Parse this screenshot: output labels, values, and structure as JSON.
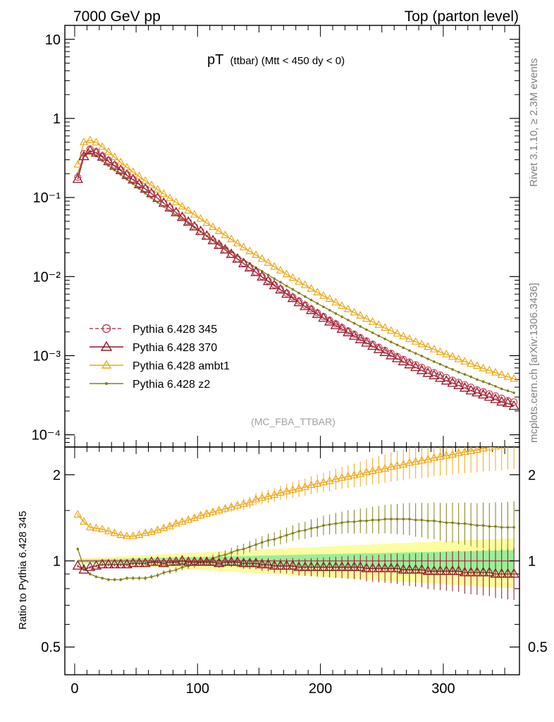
{
  "header": {
    "left": "7000 GeV pp",
    "right": "Top (parton level)"
  },
  "side_labels": {
    "rivet": "Rivet 3.1.10, ≥ 2.3M events",
    "mcplots": "mcplots.cern.ch [arXiv:1306.3436]"
  },
  "title": {
    "main": "pT",
    "sub": "(ttbar) (Mtt < 450 dy < 0)"
  },
  "watermark": "(MC_FBA_TTBAR)",
  "ratio_ylabel": "Ratio to Pythia 6.428 345",
  "colors": {
    "p345": "#c44058",
    "p370": "#8e1828",
    "ambt1": "#f0a818",
    "z2": "#808018",
    "band_inner": "#98f098",
    "band_outer": "#fcfca0"
  },
  "legend": [
    {
      "key": "p345",
      "label": "Pythia 6.428 345"
    },
    {
      "key": "p370",
      "label": "Pythia 6.428 370"
    },
    {
      "key": "ambt1",
      "label": "Pythia 6.428 ambt1"
    },
    {
      "key": "z2",
      "label": "Pythia 6.428 z2"
    }
  ],
  "chart_data": [
    {
      "type": "line",
      "title": "pT (ttbar) (Mtt < 450 dy < 0)",
      "yscale": "log",
      "xlim": [
        -8,
        362
      ],
      "ylim": [
        7e-05,
        15
      ],
      "y_ticks": [
        {
          "label": "10",
          "value": 10
        },
        {
          "label": "1",
          "value": 1
        },
        {
          "label": "10⁻¹",
          "value": 0.1
        },
        {
          "label": "10⁻²",
          "value": 0.01
        },
        {
          "label": "10⁻³",
          "value": 0.001
        },
        {
          "label": "10⁻⁴",
          "value": 0.0001
        }
      ],
      "legend_placement": "lower-left",
      "x": [
        2.5,
        7.5,
        12.5,
        17.5,
        22.5,
        27.5,
        32.5,
        37.5,
        42.5,
        47.5,
        52.5,
        57.5,
        62.5,
        67.5,
        72.5,
        77.5,
        82.5,
        87.5,
        92.5,
        97.5,
        102.5,
        107.5,
        112.5,
        117.5,
        122.5,
        127.5,
        132.5,
        137.5,
        142.5,
        147.5,
        152.5,
        157.5,
        162.5,
        167.5,
        172.5,
        177.5,
        182.5,
        187.5,
        192.5,
        197.5,
        202.5,
        207.5,
        212.5,
        217.5,
        222.5,
        227.5,
        232.5,
        237.5,
        242.5,
        247.5,
        252.5,
        257.5,
        262.5,
        267.5,
        272.5,
        277.5,
        282.5,
        287.5,
        292.5,
        297.5,
        302.5,
        307.5,
        312.5,
        317.5,
        322.5,
        327.5,
        332.5,
        337.5,
        342.5,
        347.5,
        352.5,
        357.5
      ],
      "series": [
        {
          "name": "Pythia 6.428 345",
          "key": "p345",
          "values": [
            0.18,
            0.36,
            0.41,
            0.38,
            0.336,
            0.295,
            0.258,
            0.225,
            0.196,
            0.171,
            0.149,
            0.13,
            0.113,
            0.098,
            0.085,
            0.074,
            0.0645,
            0.0562,
            0.049,
            0.0428,
            0.0374,
            0.0327,
            0.0286,
            0.025,
            0.0219,
            0.0192,
            0.0168,
            0.0148,
            0.013,
            0.0114,
            0.0101,
            0.0089,
            0.0079,
            0.007,
            0.0062,
            0.0055,
            0.0049,
            0.00437,
            0.0039,
            0.00349,
            0.00313,
            0.00281,
            0.00253,
            0.00228,
            0.00206,
            0.00187,
            0.00169,
            0.00154,
            0.0014,
            0.00128,
            0.00117,
            0.00107,
            0.00098,
            0.0009,
            0.00083,
            0.00077,
            0.00071,
            0.00066,
            0.00061,
            0.00057,
            0.00053,
            0.00049,
            0.00046,
            0.00043,
            0.0004,
            0.00037,
            0.00035,
            0.00033,
            0.00031,
            0.00029,
            0.00027,
            0.00026
          ]
        },
        {
          "name": "Pythia 6.428 370",
          "key": "p370",
          "values": [
            0.17,
            0.33,
            0.39,
            0.366,
            0.325,
            0.285,
            0.25,
            0.219,
            0.191,
            0.167,
            0.146,
            0.128,
            0.112,
            0.098,
            0.085,
            0.074,
            0.0645,
            0.0562,
            0.0489,
            0.0427,
            0.0373,
            0.0326,
            0.0285,
            0.0249,
            0.0218,
            0.0191,
            0.0167,
            0.0146,
            0.0129,
            0.0113,
            0.0099,
            0.0087,
            0.0077,
            0.0068,
            0.006,
            0.0053,
            0.0047,
            0.00419,
            0.00374,
            0.00334,
            0.00299,
            0.00268,
            0.00241,
            0.00217,
            0.00196,
            0.00177,
            0.0016,
            0.00145,
            0.00132,
            0.0012,
            0.0011,
            0.001,
            0.00092,
            0.00084,
            0.00077,
            0.00071,
            0.00065,
            0.0006,
            0.00056,
            0.00052,
            0.00048,
            0.00045,
            0.00042,
            0.00039,
            0.00036,
            0.00034,
            0.00032,
            0.0003,
            0.00028,
            0.00026,
            0.00025,
            0.00023
          ]
        },
        {
          "name": "Pythia 6.428 ambt1",
          "key": "ambt1",
          "values": [
            0.26,
            0.5,
            0.53,
            0.496,
            0.435,
            0.376,
            0.323,
            0.278,
            0.24,
            0.209,
            0.184,
            0.162,
            0.143,
            0.126,
            0.111,
            0.098,
            0.0868,
            0.0769,
            0.0682,
            0.0605,
            0.0537,
            0.0476,
            0.0422,
            0.0375,
            0.0333,
            0.0296,
            0.0263,
            0.0234,
            0.0209,
            0.0187,
            0.0167,
            0.0149,
            0.0133,
            0.0119,
            0.0107,
            0.0096,
            0.0086,
            0.0078,
            0.007,
            0.0063,
            0.0057,
            0.0052,
            0.0047,
            0.00425,
            0.00386,
            0.00351,
            0.0032,
            0.00292,
            0.00267,
            0.00245,
            0.00224,
            0.00206,
            0.0019,
            0.00175,
            0.00162,
            0.0015,
            0.00139,
            0.00129,
            0.0012,
            0.00111,
            0.00104,
            0.00097,
            0.0009,
            0.00084,
            0.00079,
            0.00074,
            0.00069,
            0.00065,
            0.00061,
            0.00057,
            0.00054,
            0.00051
          ]
        },
        {
          "name": "Pythia 6.428 z2",
          "key": "z2",
          "values": [
            0.2,
            0.34,
            0.37,
            0.335,
            0.291,
            0.254,
            0.222,
            0.195,
            0.17,
            0.149,
            0.13,
            0.113,
            0.099,
            0.087,
            0.077,
            0.068,
            0.06,
            0.0532,
            0.0471,
            0.0417,
            0.037,
            0.0328,
            0.0291,
            0.0259,
            0.023,
            0.0205,
            0.0183,
            0.0163,
            0.0146,
            0.013,
            0.0117,
            0.0105,
            0.0094,
            0.0085,
            0.0076,
            0.0069,
            0.0062,
            0.0056,
            0.00506,
            0.00458,
            0.00415,
            0.00376,
            0.00341,
            0.0031,
            0.00282,
            0.00257,
            0.00234,
            0.00213,
            0.00195,
            0.00178,
            0.00163,
            0.00149,
            0.00137,
            0.00126,
            0.00116,
            0.00107,
            0.00099,
            0.00091,
            0.00084,
            0.00078,
            0.00072,
            0.00067,
            0.00062,
            0.00058,
            0.00054,
            0.0005,
            0.00047,
            0.00044,
            0.00041,
            0.00038,
            0.00036,
            0.00034
          ]
        }
      ]
    },
    {
      "type": "line",
      "title": "",
      "ylabel": "Ratio to Pythia 6.428 345",
      "yscale": "log",
      "xlim": [
        -8,
        362
      ],
      "ylim": [
        0.4,
        2.5
      ],
      "x_ticks": [
        0,
        100,
        200,
        300
      ],
      "y_ticks": [
        {
          "label": "0.5",
          "value": 0.5
        },
        {
          "label": "1",
          "value": 1
        },
        {
          "label": "2",
          "value": 2
        }
      ],
      "band": {
        "inner_halfwidth_start": 0.01,
        "inner_halfwidth_end": 0.09,
        "outer_halfwidth_start": 0.02,
        "outer_halfwidth_end": 0.2
      },
      "series": [
        {
          "name": "Pythia 6.428 370",
          "key": "p370",
          "values": [
            0.96,
            0.93,
            0.95,
            0.96,
            0.97,
            0.97,
            0.97,
            0.97,
            0.97,
            0.98,
            0.98,
            0.98,
            0.99,
            0.99,
            0.98,
            0.99,
            0.99,
            1.0,
            0.99,
            0.99,
            0.99,
            0.99,
            0.99,
            0.98,
            0.99,
            0.99,
            0.99,
            0.98,
            0.98,
            0.98,
            0.97,
            0.97,
            0.96,
            0.96,
            0.96,
            0.96,
            0.95,
            0.95,
            0.95,
            0.95,
            0.95,
            0.95,
            0.95,
            0.95,
            0.95,
            0.95,
            0.95,
            0.94,
            0.94,
            0.94,
            0.94,
            0.94,
            0.94,
            0.93,
            0.93,
            0.93,
            0.93,
            0.92,
            0.92,
            0.92,
            0.92,
            0.92,
            0.92,
            0.91,
            0.91,
            0.91,
            0.91,
            0.91,
            0.9,
            0.9,
            0.9,
            0.9
          ]
        },
        {
          "name": "Pythia 6.428 ambt1",
          "key": "ambt1",
          "values": [
            1.45,
            1.37,
            1.31,
            1.3,
            1.29,
            1.27,
            1.25,
            1.23,
            1.22,
            1.22,
            1.23,
            1.25,
            1.26,
            1.28,
            1.3,
            1.32,
            1.35,
            1.37,
            1.39,
            1.41,
            1.44,
            1.46,
            1.48,
            1.5,
            1.52,
            1.54,
            1.56,
            1.58,
            1.6,
            1.64,
            1.66,
            1.68,
            1.7,
            1.73,
            1.75,
            1.77,
            1.79,
            1.81,
            1.84,
            1.86,
            1.88,
            1.9,
            1.93,
            1.95,
            1.97,
            1.99,
            2.01,
            2.04,
            2.06,
            2.08,
            2.1,
            2.13,
            2.15,
            2.17,
            2.2,
            2.22,
            2.24,
            2.26,
            2.29,
            2.31,
            2.33,
            2.35,
            2.38,
            2.4,
            2.42,
            2.44,
            2.47,
            2.49,
            2.51,
            2.53,
            2.56,
            2.58
          ]
        },
        {
          "name": "Pythia 6.428 z2",
          "key": "z2",
          "values": [
            1.1,
            0.95,
            0.9,
            0.88,
            0.87,
            0.86,
            0.86,
            0.86,
            0.87,
            0.87,
            0.87,
            0.87,
            0.88,
            0.89,
            0.91,
            0.92,
            0.93,
            0.95,
            0.96,
            0.97,
            0.99,
            1.0,
            1.02,
            1.04,
            1.05,
            1.07,
            1.09,
            1.1,
            1.12,
            1.14,
            1.16,
            1.18,
            1.19,
            1.21,
            1.23,
            1.25,
            1.27,
            1.28,
            1.3,
            1.31,
            1.33,
            1.34,
            1.35,
            1.36,
            1.37,
            1.37,
            1.38,
            1.38,
            1.39,
            1.39,
            1.4,
            1.4,
            1.4,
            1.4,
            1.4,
            1.39,
            1.39,
            1.38,
            1.38,
            1.37,
            1.36,
            1.36,
            1.35,
            1.35,
            1.34,
            1.33,
            1.33,
            1.32,
            1.32,
            1.31,
            1.31,
            1.31
          ]
        }
      ]
    }
  ]
}
